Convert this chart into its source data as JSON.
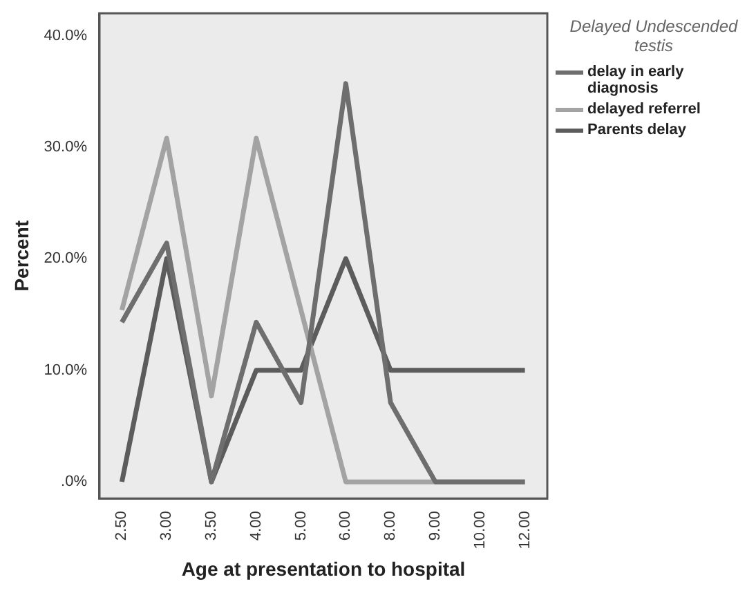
{
  "chart_data": {
    "type": "line",
    "xlabel": "Age at presentation to hospital",
    "ylabel": "Percent",
    "legend_title": "Delayed Undescended testis",
    "categories": [
      "2.50",
      "3.00",
      "3.50",
      "4.00",
      "5.00",
      "6.00",
      "8.00",
      "9.00",
      "10.00",
      "12.00"
    ],
    "series": [
      {
        "name": "delay in early diagnosis",
        "color": "#6e6e6e",
        "values": [
          14.3,
          21.4,
          0,
          14.3,
          7.1,
          35.7,
          7.1,
          0,
          0,
          0
        ]
      },
      {
        "name": "delayed referrel",
        "color": "#a3a3a3",
        "values": [
          15.4,
          30.8,
          7.7,
          30.8,
          15.4,
          0,
          0,
          0,
          0,
          0
        ]
      },
      {
        "name": "Parents delay",
        "color": "#5c5c5c",
        "values": [
          0,
          20,
          0,
          10,
          10,
          20,
          10,
          10,
          10,
          10
        ]
      }
    ],
    "ylim": [
      -1.5,
      42
    ],
    "yticks": [
      {
        "value": 0,
        "label": ".0%"
      },
      {
        "value": 10,
        "label": "10.0%"
      },
      {
        "value": 20,
        "label": "20.0%"
      },
      {
        "value": 30,
        "label": "30.0%"
      },
      {
        "value": 40,
        "label": "40.0%"
      }
    ],
    "grid": false,
    "legend": "right",
    "marker": "none",
    "line_style": "solid"
  }
}
